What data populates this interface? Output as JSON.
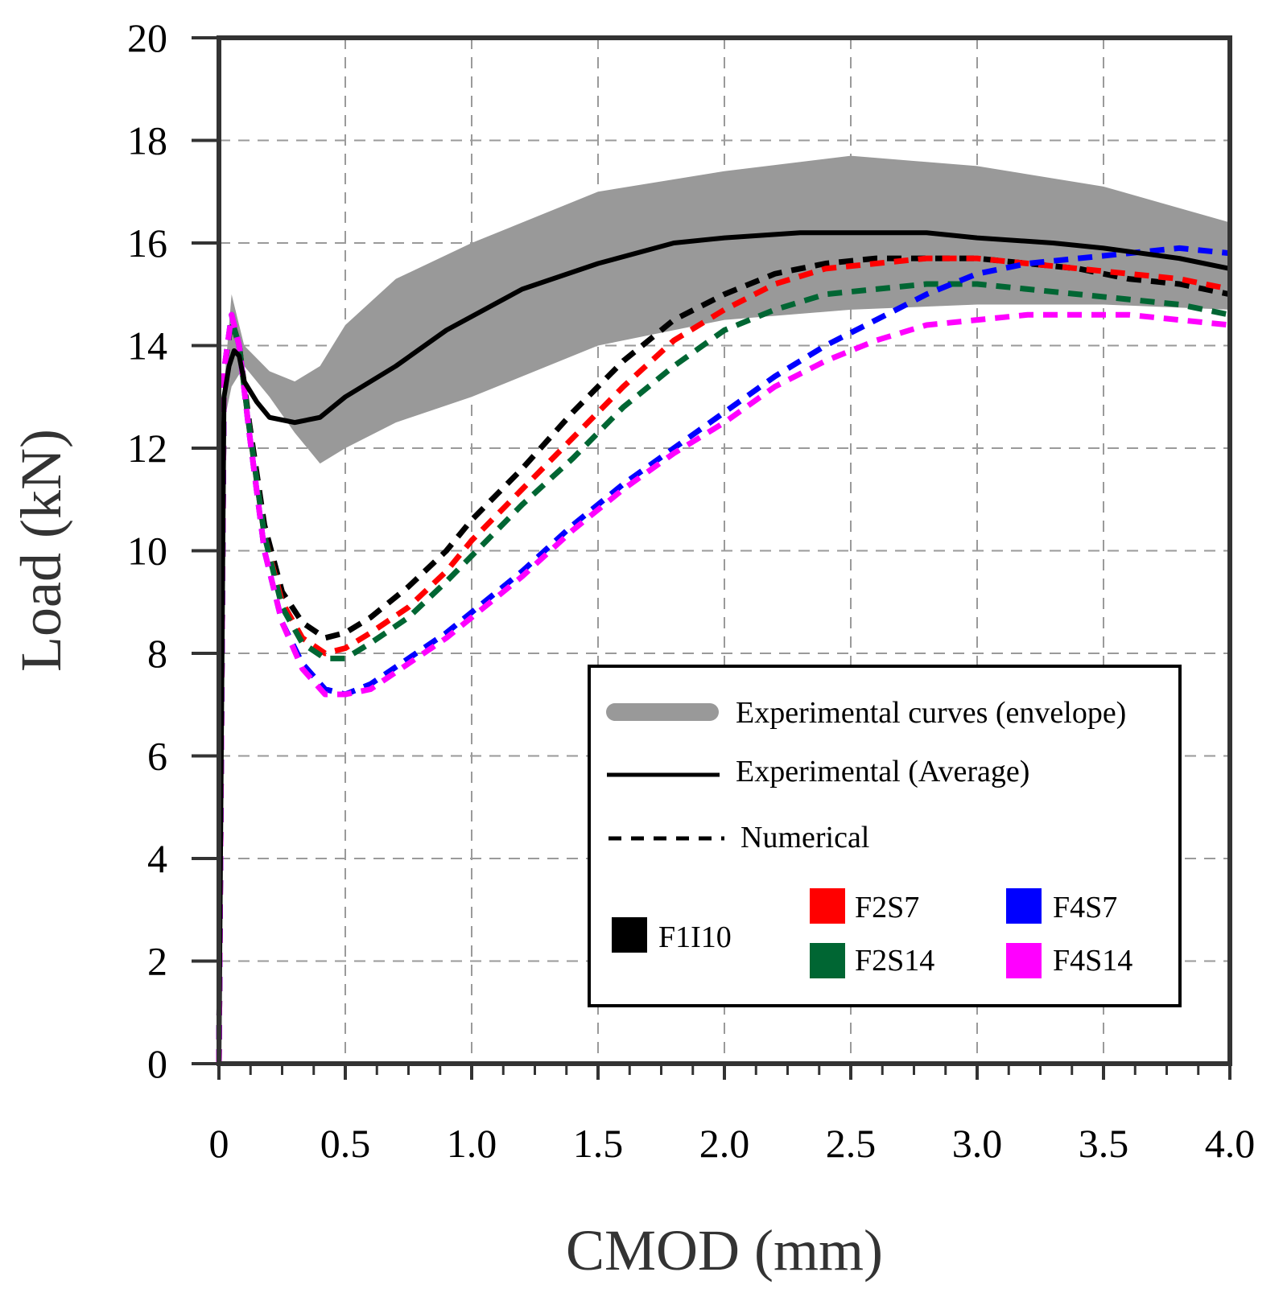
{
  "chart_data": {
    "type": "line",
    "title": "",
    "xlabel": "CMOD (mm)",
    "ylabel": "Load (kN)",
    "xlim": [
      0,
      4.0
    ],
    "ylim": [
      0,
      20
    ],
    "grid": true,
    "x_ticks": [
      0,
      0.5,
      1.0,
      1.5,
      2.0,
      2.5,
      3.0,
      3.5,
      4.0
    ],
    "x_tick_labels": [
      "0",
      "0.5",
      "1.0",
      "1.5",
      "2.0",
      "2.5",
      "3.0",
      "3.5",
      "4.0"
    ],
    "y_ticks": [
      0,
      2,
      4,
      6,
      8,
      10,
      12,
      14,
      16,
      18,
      20
    ],
    "y_tick_labels": [
      "0",
      "2",
      "4",
      "6",
      "8",
      "10",
      "12",
      "14",
      "16",
      "18",
      "20"
    ],
    "envelope": {
      "name": "Experimental curves (envelope)",
      "color": "#999999",
      "x": [
        0,
        0.02,
        0.05,
        0.1,
        0.2,
        0.3,
        0.4,
        0.5,
        0.7,
        1.0,
        1.5,
        2.0,
        2.5,
        3.0,
        3.5,
        4.0
      ],
      "upper": [
        0,
        13.2,
        15.0,
        14.0,
        13.5,
        13.3,
        13.6,
        14.4,
        15.3,
        16.0,
        17.0,
        17.4,
        17.7,
        17.5,
        17.1,
        16.4
      ],
      "lower": [
        0,
        12.5,
        13.2,
        13.6,
        13.0,
        12.3,
        11.7,
        12.0,
        12.5,
        13.0,
        14.0,
        14.5,
        14.7,
        14.8,
        14.8,
        14.7
      ]
    },
    "series": [
      {
        "name": "Experimental (Average)",
        "style": "solid",
        "color": "#000000",
        "x": [
          0,
          0.02,
          0.04,
          0.06,
          0.08,
          0.1,
          0.15,
          0.2,
          0.3,
          0.4,
          0.5,
          0.7,
          0.9,
          1.2,
          1.5,
          1.8,
          2.0,
          2.3,
          2.5,
          2.8,
          3.0,
          3.3,
          3.5,
          3.8,
          4.0
        ],
        "values": [
          0,
          13.0,
          13.6,
          13.9,
          13.8,
          13.3,
          12.9,
          12.6,
          12.5,
          12.6,
          13.0,
          13.6,
          14.3,
          15.1,
          15.6,
          16.0,
          16.1,
          16.2,
          16.2,
          16.2,
          16.1,
          16.0,
          15.9,
          15.7,
          15.5
        ]
      },
      {
        "name": "F1I10",
        "style": "dashed",
        "color": "#000000",
        "x": [
          0,
          0.02,
          0.05,
          0.08,
          0.12,
          0.18,
          0.25,
          0.33,
          0.42,
          0.5,
          0.6,
          0.75,
          0.9,
          1.0,
          1.2,
          1.4,
          1.6,
          1.8,
          2.0,
          2.2,
          2.4,
          2.6,
          2.8,
          3.0,
          3.2,
          3.4,
          3.6,
          3.8,
          4.0
        ],
        "values": [
          0,
          13.5,
          14.5,
          14.0,
          12.5,
          10.5,
          9.2,
          8.6,
          8.3,
          8.4,
          8.7,
          9.3,
          10.0,
          10.6,
          11.6,
          12.7,
          13.7,
          14.5,
          15.0,
          15.4,
          15.6,
          15.7,
          15.7,
          15.7,
          15.6,
          15.5,
          15.3,
          15.2,
          15.0
        ]
      },
      {
        "name": "F2S7",
        "style": "dashed",
        "color": "#ff0000",
        "x": [
          0,
          0.02,
          0.05,
          0.08,
          0.12,
          0.18,
          0.25,
          0.33,
          0.42,
          0.5,
          0.6,
          0.75,
          0.9,
          1.0,
          1.2,
          1.4,
          1.6,
          1.8,
          2.0,
          2.2,
          2.4,
          2.6,
          2.8,
          3.0,
          3.2,
          3.4,
          3.6,
          3.8,
          4.0
        ],
        "values": [
          0,
          13.5,
          14.5,
          14.0,
          12.4,
          10.3,
          9.0,
          8.3,
          8.0,
          8.1,
          8.4,
          8.9,
          9.6,
          10.2,
          11.2,
          12.2,
          13.2,
          14.1,
          14.7,
          15.2,
          15.5,
          15.6,
          15.7,
          15.7,
          15.6,
          15.5,
          15.4,
          15.3,
          15.1
        ]
      },
      {
        "name": "F2S14",
        "style": "dashed",
        "color": "#006633",
        "x": [
          0,
          0.02,
          0.05,
          0.08,
          0.12,
          0.18,
          0.25,
          0.33,
          0.42,
          0.5,
          0.6,
          0.75,
          0.9,
          1.0,
          1.2,
          1.4,
          1.6,
          1.8,
          2.0,
          2.2,
          2.4,
          2.6,
          2.8,
          3.0,
          3.2,
          3.4,
          3.6,
          3.8,
          4.0
        ],
        "values": [
          0,
          13.5,
          14.5,
          14.0,
          12.4,
          10.3,
          8.9,
          8.2,
          7.9,
          7.9,
          8.2,
          8.7,
          9.4,
          9.9,
          10.9,
          11.8,
          12.8,
          13.6,
          14.3,
          14.7,
          15.0,
          15.1,
          15.2,
          15.2,
          15.1,
          15.0,
          14.9,
          14.8,
          14.6
        ]
      },
      {
        "name": "F4S7",
        "style": "dashed",
        "color": "#0000ff",
        "x": [
          0,
          0.02,
          0.05,
          0.08,
          0.12,
          0.18,
          0.25,
          0.33,
          0.42,
          0.5,
          0.6,
          0.75,
          0.9,
          1.0,
          1.2,
          1.4,
          1.6,
          1.8,
          2.0,
          2.2,
          2.4,
          2.6,
          2.8,
          3.0,
          3.2,
          3.4,
          3.6,
          3.8,
          4.0
        ],
        "values": [
          0,
          13.5,
          14.6,
          14.0,
          12.3,
          10.0,
          8.6,
          7.8,
          7.3,
          7.2,
          7.4,
          7.9,
          8.4,
          8.8,
          9.6,
          10.5,
          11.3,
          12.0,
          12.7,
          13.4,
          14.0,
          14.5,
          15.0,
          15.4,
          15.6,
          15.7,
          15.8,
          15.9,
          15.8
        ]
      },
      {
        "name": "F4S14",
        "style": "dashed",
        "color": "#ff00ff",
        "x": [
          0,
          0.02,
          0.05,
          0.08,
          0.12,
          0.18,
          0.25,
          0.33,
          0.42,
          0.5,
          0.6,
          0.75,
          0.9,
          1.0,
          1.2,
          1.4,
          1.6,
          1.8,
          2.0,
          2.2,
          2.4,
          2.6,
          2.8,
          3.0,
          3.2,
          3.4,
          3.6,
          3.8,
          4.0
        ],
        "values": [
          0,
          13.5,
          14.6,
          14.0,
          12.3,
          10.0,
          8.6,
          7.7,
          7.2,
          7.2,
          7.3,
          7.8,
          8.3,
          8.7,
          9.5,
          10.4,
          11.2,
          11.9,
          12.5,
          13.2,
          13.7,
          14.1,
          14.4,
          14.5,
          14.6,
          14.6,
          14.6,
          14.5,
          14.4
        ]
      }
    ],
    "legend": {
      "position": "bottom-right inside",
      "style_entries": [
        {
          "label": "Experimental curves (envelope)",
          "kind": "band",
          "color": "#999999"
        },
        {
          "label": "Experimental (Average)",
          "kind": "solid",
          "color": "#000000"
        },
        {
          "label": "Numerical",
          "kind": "dashed",
          "color": "#000000"
        }
      ],
      "color_entries": [
        {
          "label": "F1I10",
          "color": "#000000"
        },
        {
          "label": "F2S7",
          "color": "#ff0000"
        },
        {
          "label": "F2S14",
          "color": "#006633"
        },
        {
          "label": "F4S7",
          "color": "#0000ff"
        },
        {
          "label": "F4S14",
          "color": "#ff00ff"
        }
      ]
    }
  }
}
